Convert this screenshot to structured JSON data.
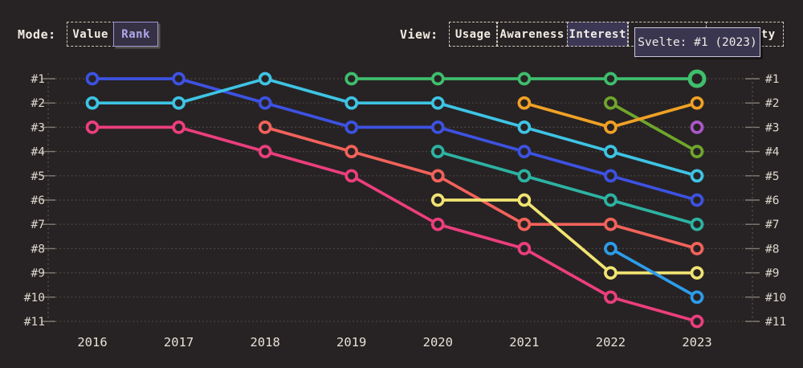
{
  "header": {
    "mode_label": "Mode:",
    "mode_options": [
      {
        "label": "Value",
        "selected": false
      },
      {
        "label": "Rank",
        "selected": true
      }
    ],
    "view_label": "View:",
    "view_options": [
      {
        "label": "Usage",
        "selected": false
      },
      {
        "label": "Awareness",
        "selected": false
      },
      {
        "label": "Interest",
        "selected": true
      },
      {
        "label": "",
        "selected": false,
        "hidden_behind_tooltip": true
      },
      {
        "label": "ty",
        "selected": false,
        "truncated": true
      }
    ]
  },
  "tooltip": {
    "text": "Svelte: #1 (2023)"
  },
  "colors": {
    "background": "#272324",
    "grid": "#524D48",
    "axis": "#5A554F",
    "tick": "#837D75",
    "axis_label": "#DCD7CC",
    "year_label": "#E6E2D7",
    "accent_purple": "#B0A8EC",
    "tooltip_bg": "#3B3650",
    "tooltip_border": "#CBC5DC"
  },
  "chart_data": {
    "type": "line",
    "subtype": "bump-chart-of-rankings",
    "title": "",
    "xlabel": "",
    "ylabel": "",
    "x": [
      2016,
      2017,
      2018,
      2019,
      2020,
      2021,
      2022,
      2023
    ],
    "x_labels": [
      "2016",
      "2017",
      "2018",
      "2019",
      "2020",
      "2021",
      "2022",
      "2023"
    ],
    "rank_labels": [
      "#1",
      "#2",
      "#3",
      "#4",
      "#5",
      "#6",
      "#7",
      "#8",
      "#9",
      "#10",
      "#11"
    ],
    "ylim": [
      1,
      11
    ],
    "y_inverted": true,
    "grid": "dotted horizontal line per rank, dashed vertical axis left and right",
    "legend": "none",
    "highlight": {
      "series": "svelte-green",
      "year": 2023,
      "rank": 1,
      "tooltip": "Svelte: #1 (2023)"
    },
    "series": [
      {
        "id": "royal-blue",
        "color": "#3D52E2",
        "points": [
          [
            2016,
            1
          ],
          [
            2017,
            1
          ],
          [
            2018,
            2
          ],
          [
            2019,
            3
          ],
          [
            2020,
            3
          ],
          [
            2021,
            4
          ],
          [
            2022,
            5
          ],
          [
            2023,
            6
          ]
        ]
      },
      {
        "id": "cyan",
        "color": "#3EC4E4",
        "points": [
          [
            2016,
            2
          ],
          [
            2017,
            2
          ],
          [
            2018,
            1
          ],
          [
            2019,
            2
          ],
          [
            2020,
            2
          ],
          [
            2021,
            3
          ],
          [
            2022,
            4
          ],
          [
            2023,
            5
          ]
        ]
      },
      {
        "id": "pink",
        "color": "#EC3E7D",
        "points": [
          [
            2016,
            3
          ],
          [
            2017,
            3
          ],
          [
            2018,
            4
          ],
          [
            2019,
            5
          ],
          [
            2020,
            7
          ],
          [
            2021,
            8
          ],
          [
            2022,
            10
          ],
          [
            2023,
            11
          ]
        ]
      },
      {
        "id": "salmon",
        "color": "#F2625B",
        "points": [
          [
            2018,
            3
          ],
          [
            2019,
            4
          ],
          [
            2020,
            5
          ],
          [
            2021,
            7
          ],
          [
            2022,
            7
          ],
          [
            2023,
            8
          ]
        ]
      },
      {
        "id": "teal",
        "color": "#2DB3A2",
        "points": [
          [
            2020,
            4
          ],
          [
            2021,
            5
          ],
          [
            2022,
            6
          ],
          [
            2023,
            7
          ]
        ]
      },
      {
        "id": "yellow",
        "color": "#F0E372",
        "points": [
          [
            2020,
            6
          ],
          [
            2021,
            6
          ],
          [
            2022,
            9
          ],
          [
            2023,
            9
          ]
        ]
      },
      {
        "id": "olive",
        "color": "#6FA62B",
        "points": [
          [
            2022,
            2
          ],
          [
            2023,
            4
          ]
        ]
      },
      {
        "id": "orange",
        "color": "#F0A125",
        "points": [
          [
            2021,
            2
          ],
          [
            2022,
            3
          ],
          [
            2023,
            2
          ]
        ]
      },
      {
        "id": "dodger-blue",
        "color": "#2D9CEA",
        "points": [
          [
            2022,
            8
          ],
          [
            2023,
            10
          ]
        ]
      },
      {
        "id": "svelte-green",
        "color": "#3FBE6D",
        "points": [
          [
            2019,
            1
          ],
          [
            2020,
            1
          ],
          [
            2021,
            1
          ],
          [
            2022,
            1
          ],
          [
            2023,
            1
          ]
        ]
      },
      {
        "id": "purple",
        "color": "#AB57C8",
        "points": [
          [
            2023,
            3
          ]
        ]
      }
    ]
  }
}
